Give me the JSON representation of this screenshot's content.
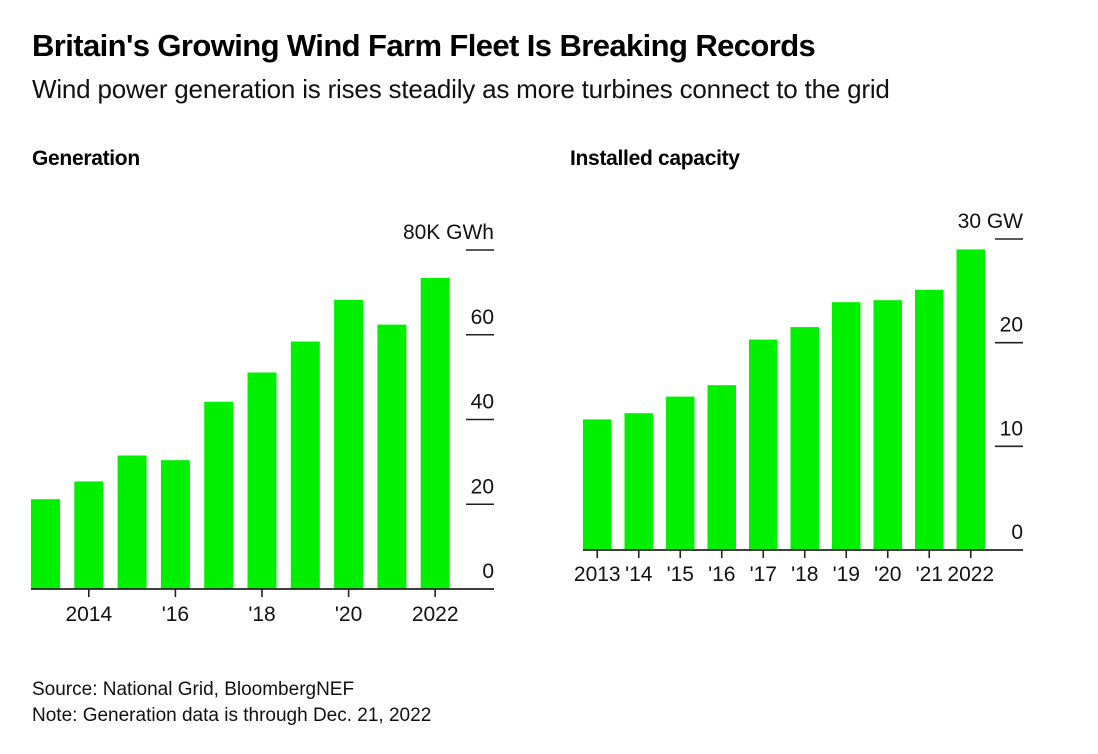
{
  "header": {
    "title": "Britain's Growing Wind Farm Fleet Is Breaking Records",
    "subtitle": "Wind power generation is rises steadily as more turbines connect to the grid"
  },
  "footer": {
    "source": "Source: National Grid, BloombergNEF",
    "note": "Note: Generation data is through Dec. 21, 2022"
  },
  "colors": {
    "bar": "#00f000",
    "axis": "#222222",
    "text": "#111111"
  },
  "chart_data": [
    {
      "type": "bar",
      "title": "Generation",
      "xlabel": "",
      "ylabel": "GWh",
      "unit_label": "80K GWh",
      "categories": [
        "2013",
        "2014",
        "2015",
        "2016",
        "2017",
        "2018",
        "2019",
        "2020",
        "2021",
        "2022"
      ],
      "x_tick_labels": [
        {
          "category": "2014",
          "label": "2014"
        },
        {
          "category": "2016",
          "label": "'16"
        },
        {
          "category": "2018",
          "label": "'18"
        },
        {
          "category": "2020",
          "label": "'20"
        },
        {
          "category": "2022",
          "label": "2022"
        }
      ],
      "values": [
        21.2,
        25.4,
        31.5,
        30.4,
        44.2,
        51.1,
        58.4,
        68.2,
        62.4,
        73.4
      ],
      "value_unit": "thousand GWh",
      "ylim": [
        0,
        80
      ],
      "y_ticks": [
        0,
        20,
        40,
        60,
        80
      ],
      "y_tick_labels": [
        "0",
        "20",
        "40",
        "60",
        "80K GWh"
      ],
      "y_axis_side": "right",
      "grid": false,
      "legend": "none"
    },
    {
      "type": "bar",
      "title": "Installed capacity",
      "xlabel": "",
      "ylabel": "GW",
      "unit_label": "30 GW",
      "categories": [
        "2013",
        "2014",
        "2015",
        "2016",
        "2017",
        "2018",
        "2019",
        "2020",
        "2021",
        "2022"
      ],
      "x_tick_labels": [
        {
          "category": "2013",
          "label": "2013"
        },
        {
          "category": "2014",
          "label": "'14"
        },
        {
          "category": "2015",
          "label": "'15"
        },
        {
          "category": "2016",
          "label": "'16"
        },
        {
          "category": "2017",
          "label": "'17"
        },
        {
          "category": "2018",
          "label": "'18"
        },
        {
          "category": "2019",
          "label": "'19"
        },
        {
          "category": "2020",
          "label": "'20"
        },
        {
          "category": "2021",
          "label": "'21"
        },
        {
          "category": "2022",
          "label": "2022"
        }
      ],
      "values": [
        12.6,
        13.2,
        14.8,
        15.9,
        20.3,
        21.5,
        23.9,
        24.1,
        25.1,
        29.0
      ],
      "value_unit": "GW",
      "ylim": [
        0,
        30
      ],
      "y_ticks": [
        0,
        10,
        20,
        30
      ],
      "y_tick_labels": [
        "0",
        "10",
        "20",
        "30 GW"
      ],
      "y_axis_side": "right",
      "grid": false,
      "legend": "none"
    }
  ]
}
